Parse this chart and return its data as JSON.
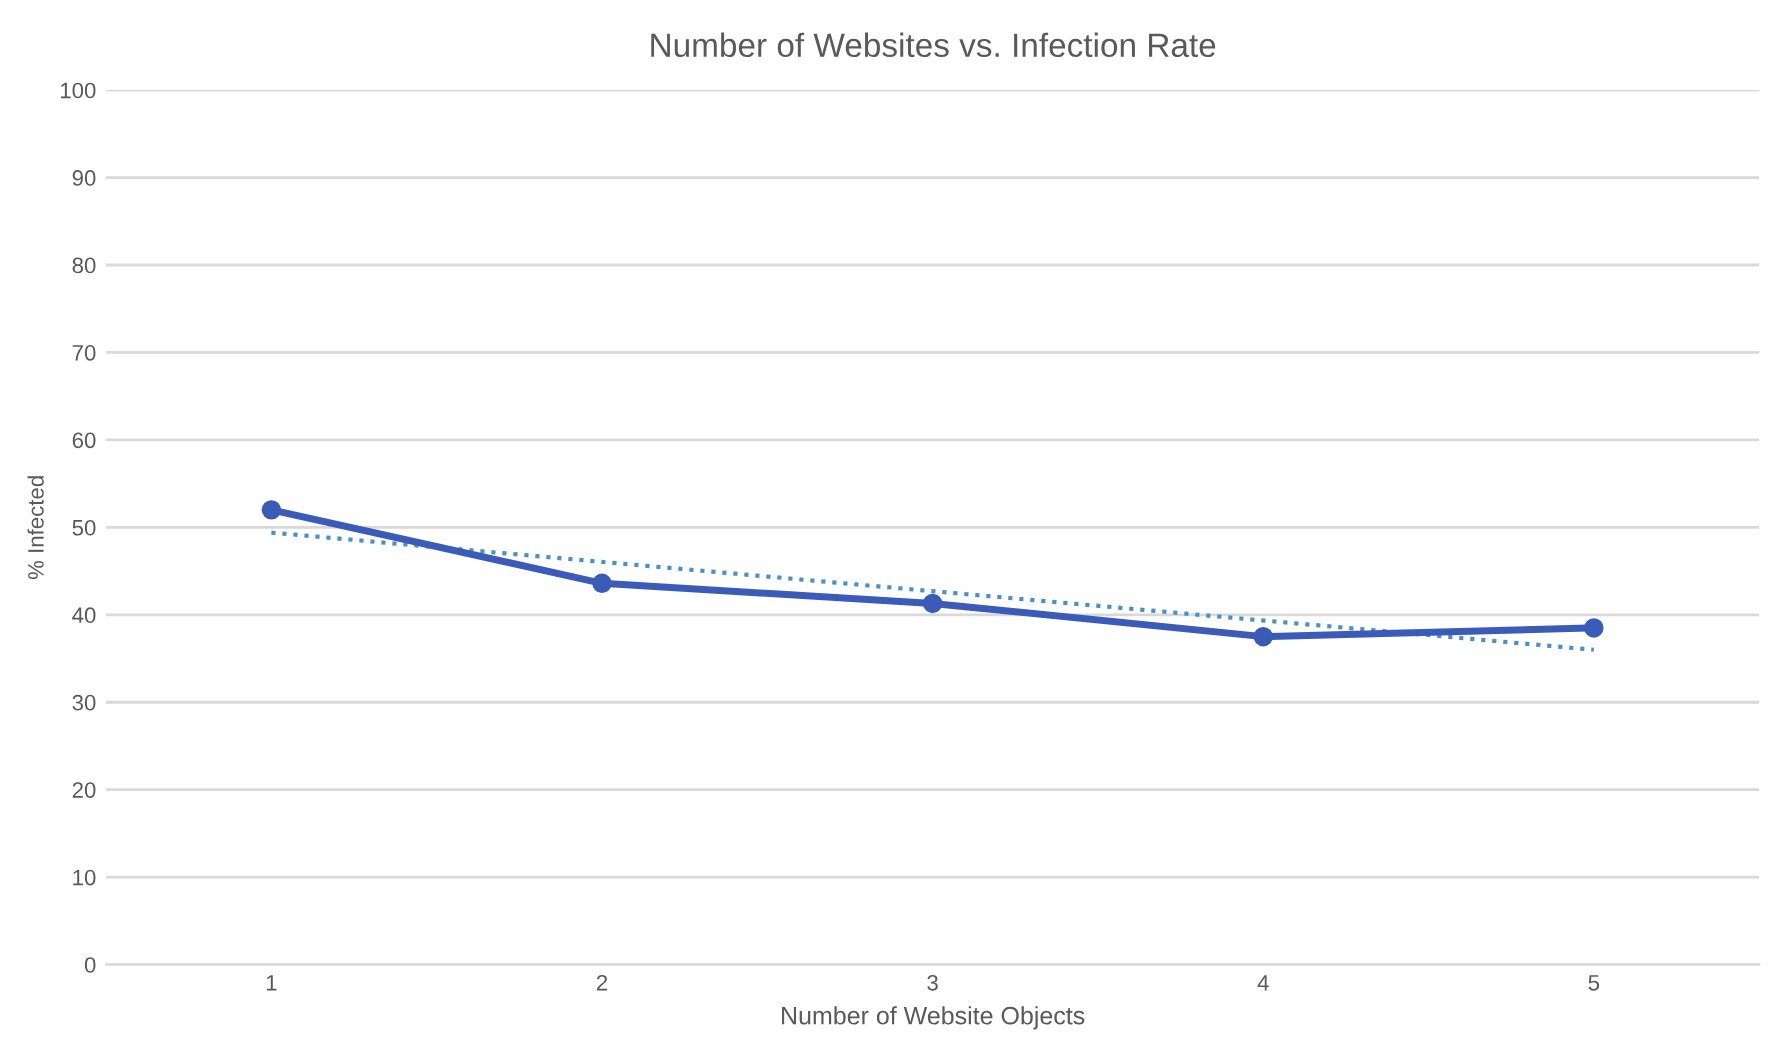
{
  "chart_data": {
    "type": "line",
    "title": "Number of Websites vs. Infection Rate",
    "xlabel": "Number of Website Objects",
    "ylabel": "% Infected",
    "x": [
      1,
      2,
      3,
      4,
      5
    ],
    "series": [
      {
        "color": "#4a90c8",
        "x": [
          1,
          5
        ],
        "values": [
          49.4,
          36.0
        ],
        "line_style": "dotted",
        "marker": "none"
      },
      {
        "color": "#3a5bb8",
        "values": [
          52.0,
          43.6,
          41.3,
          37.5,
          38.5
        ],
        "marker": "circle",
        "line_style": "solid"
      }
    ],
    "xlim": [
      0.5,
      5.5
    ],
    "xticks": [
      1,
      2,
      3,
      4,
      5
    ],
    "ylim": [
      0,
      100
    ],
    "yticks": [
      0,
      10,
      20,
      30,
      40,
      50,
      60,
      70,
      80,
      90,
      100
    ],
    "grid": "y"
  }
}
